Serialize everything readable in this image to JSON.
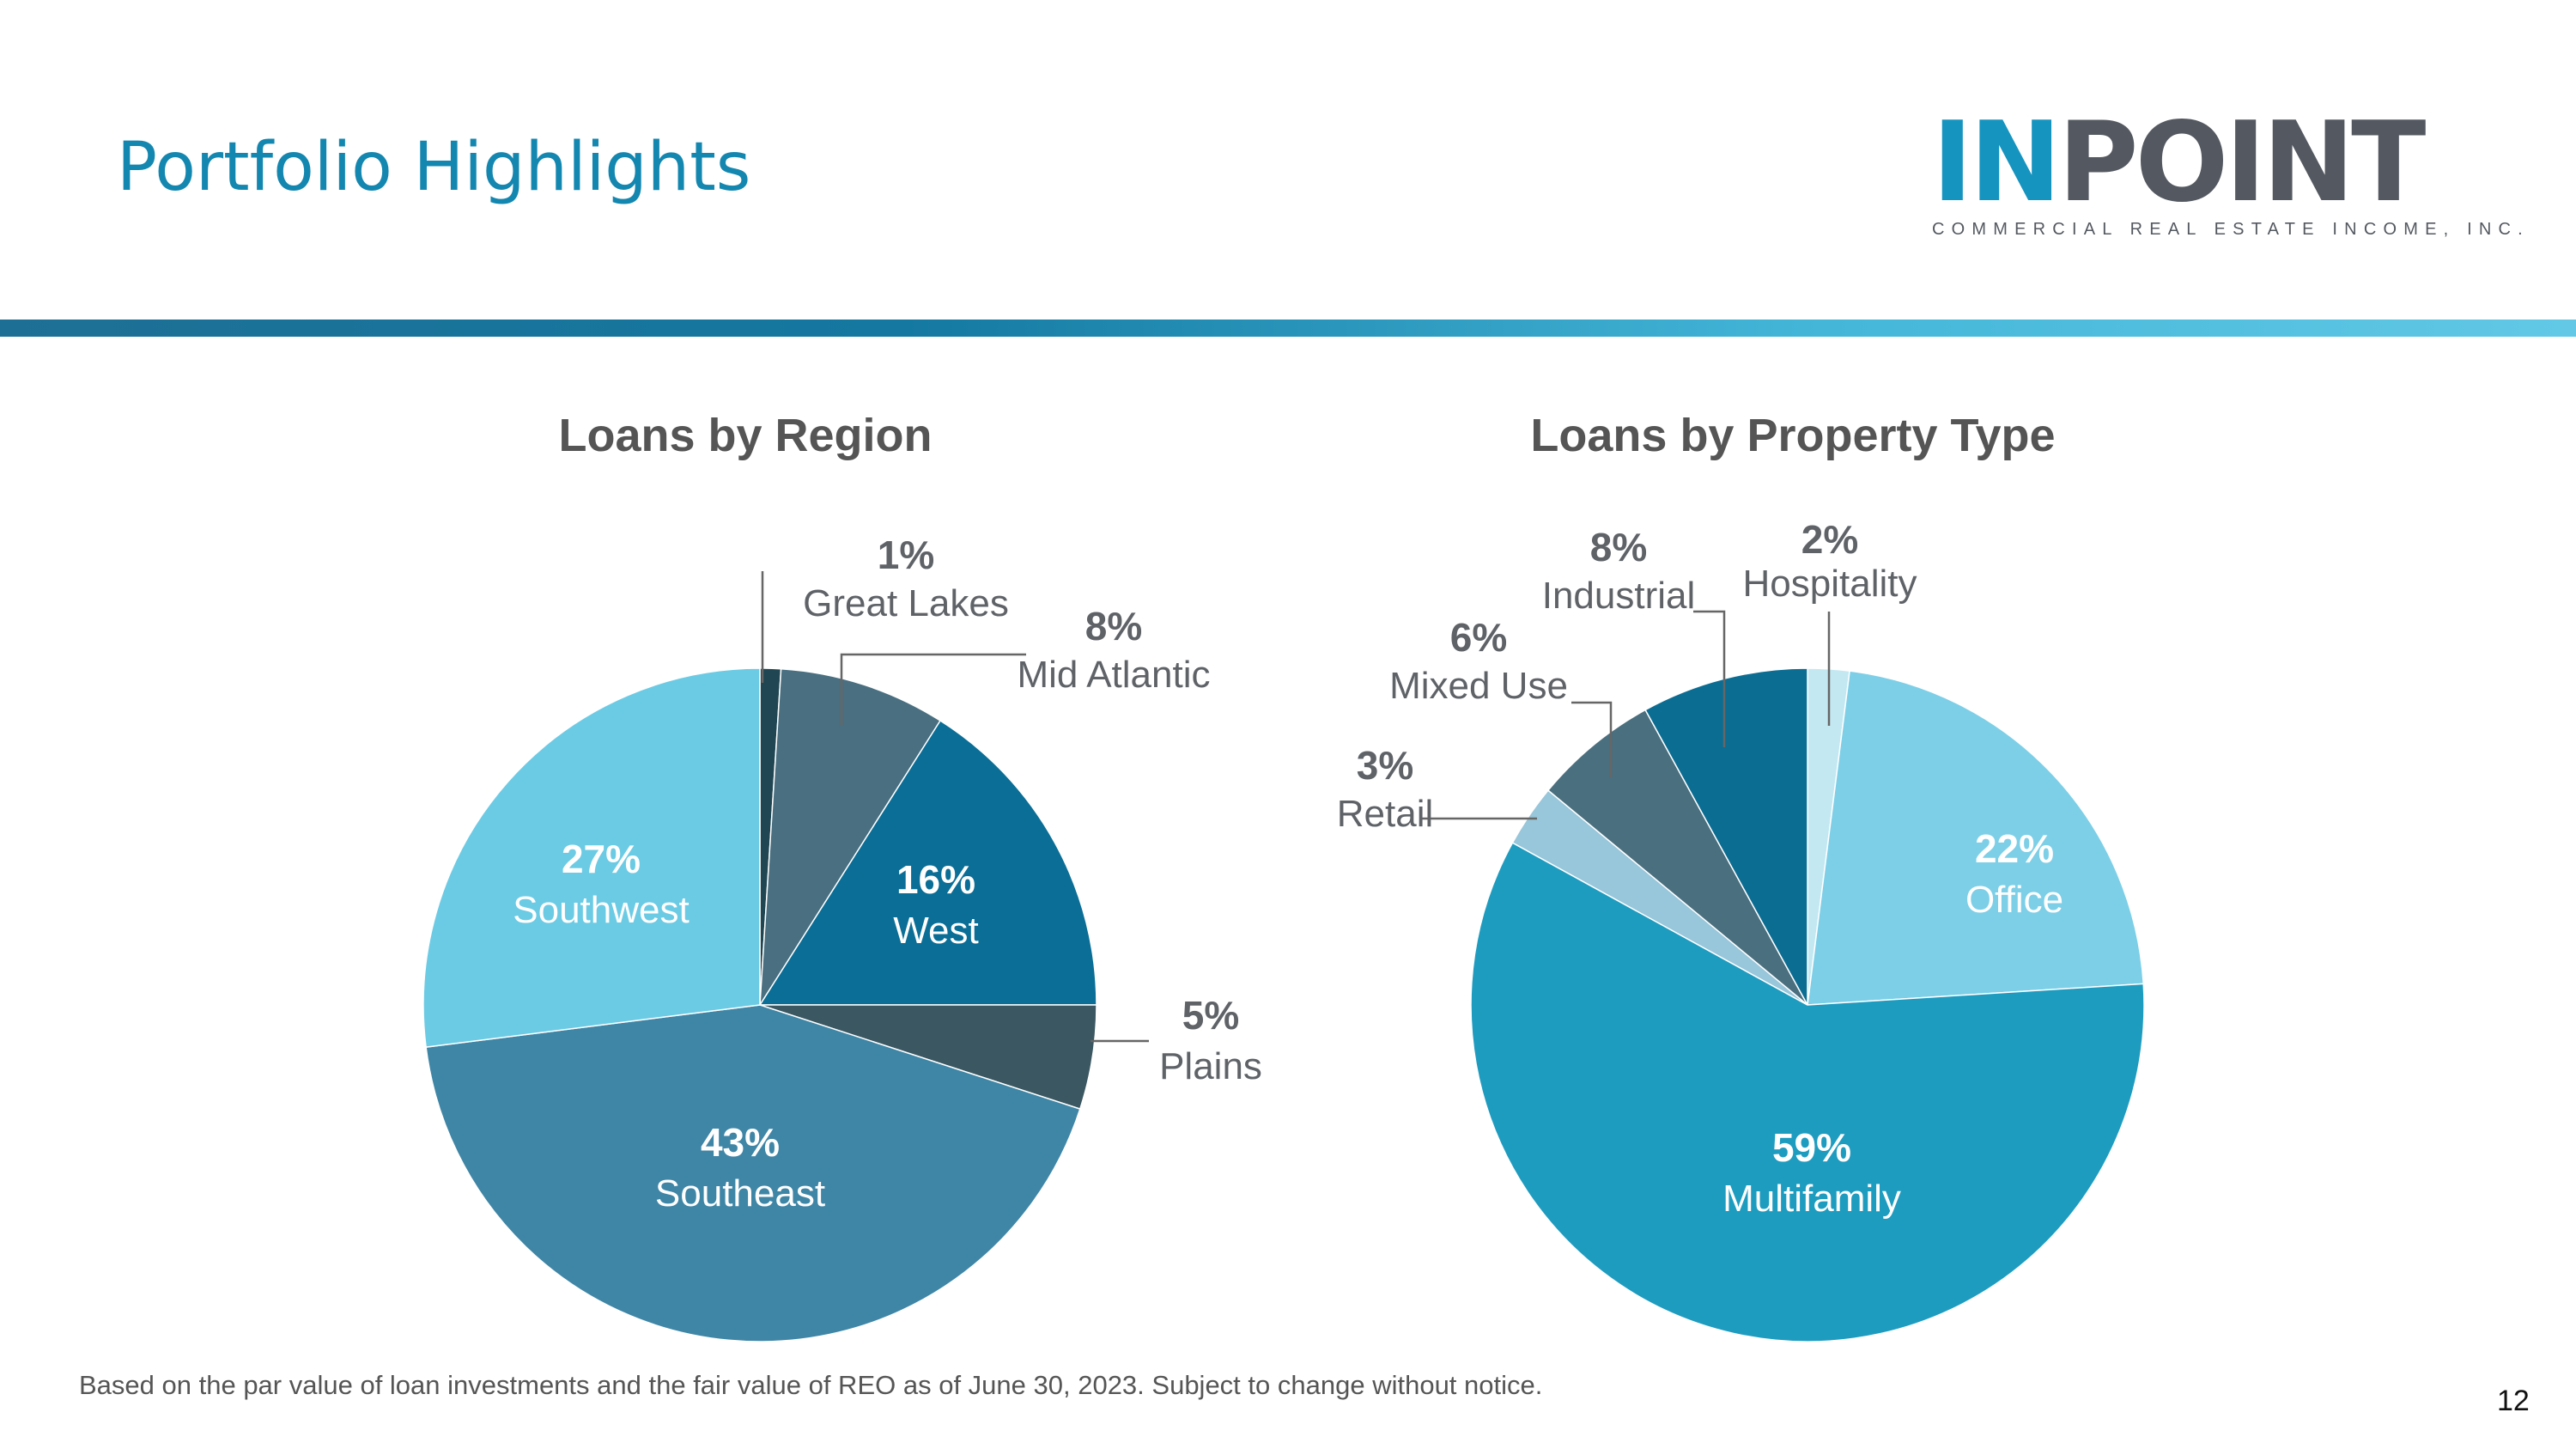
{
  "page": {
    "title": "Portfolio Highlights",
    "footnote": "Based on the par value of loan investments and the fair value of REO as of June 30, 2023. Subject to change without notice.",
    "page_number": "12"
  },
  "logo": {
    "word_in": "IN",
    "word_point": "POINT",
    "tagline": "COMMERCIAL REAL ESTATE INCOME, INC."
  },
  "chart_data": [
    {
      "type": "pie",
      "title": "Loans by Region",
      "slices": [
        {
          "label": "Great Lakes",
          "value": 1,
          "value_label": "1%",
          "color": "#1f4652"
        },
        {
          "label": "Mid Atlantic",
          "value": 8,
          "value_label": "8%",
          "color": "#496f80"
        },
        {
          "label": "West",
          "value": 16,
          "value_label": "16%",
          "color": "#0b6e96"
        },
        {
          "label": "Plains",
          "value": 5,
          "value_label": "5%",
          "color": "#3b5761"
        },
        {
          "label": "Southeast",
          "value": 43,
          "value_label": "43%",
          "color": "#3f86a6"
        },
        {
          "label": "Southwest",
          "value": 27,
          "value_label": "27%",
          "color": "#6ccbe4"
        }
      ]
    },
    {
      "type": "pie",
      "title": "Loans by Property Type",
      "slices": [
        {
          "label": "Hospitality",
          "value": 2,
          "value_label": "2%",
          "color": "#c3e8f2"
        },
        {
          "label": "Office",
          "value": 22,
          "value_label": "22%",
          "color": "#7dcfe7"
        },
        {
          "label": "Multifamily",
          "value": 59,
          "value_label": "59%",
          "color": "#1e9cc0"
        },
        {
          "label": "Retail",
          "value": 3,
          "value_label": "3%",
          "color": "#98c6da"
        },
        {
          "label": "Mixed Use",
          "value": 6,
          "value_label": "6%",
          "color": "#4a6f7e"
        },
        {
          "label": "Industrial",
          "value": 8,
          "value_label": "8%",
          "color": "#0c6d93"
        }
      ]
    }
  ]
}
